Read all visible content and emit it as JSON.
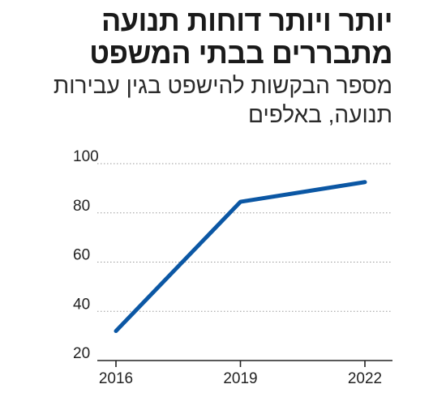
{
  "headline": "יותר ויותר דוחות תנועה מתבררים בבתי המשפט",
  "subtitle": "מספר הבקשות להישפט בגין עבירות תנועה, באלפים",
  "chart_data": {
    "type": "line",
    "title": "יותר ויותר דוחות תנועה מתבררים בבתי המשפט",
    "subtitle": "מספר הבקשות להישפט בגין עבירות תנועה, באלפים",
    "x": [
      "2016",
      "2019",
      "2022"
    ],
    "series": [
      {
        "values": [
          32,
          84.5,
          92.5
        ],
        "color": "#0b57a4"
      }
    ],
    "ylim": [
      20,
      100
    ],
    "yticks": [
      20,
      40,
      60,
      80,
      100
    ],
    "xlabel": "",
    "ylabel": "",
    "grid": true
  }
}
